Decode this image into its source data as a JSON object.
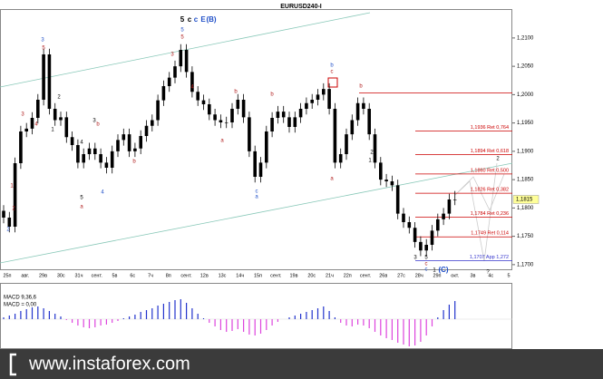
{
  "chart_data": {
    "type": "candlestick",
    "title": "EURUSD240-I",
    "ylim": [
      1.1695,
      1.2151
    ],
    "yticks": [
      {
        "value": 1.21,
        "label": "1,2100"
      },
      {
        "value": 1.205,
        "label": "1,2050"
      },
      {
        "value": 1.2,
        "label": "1,2000"
      },
      {
        "value": 1.195,
        "label": "1,1950"
      },
      {
        "value": 1.19,
        "label": "1,1900"
      },
      {
        "value": 1.185,
        "label": "1,1850"
      },
      {
        "value": 1.18,
        "label": "1,1800"
      },
      {
        "value": 1.175,
        "label": "1,1750"
      },
      {
        "value": 1.17,
        "label": "1,1700"
      }
    ],
    "xlabels": [
      "25п",
      "авг.",
      "29в",
      "30с",
      "31ч",
      "сент.",
      "5в",
      "6с",
      "7ч",
      "8п",
      "сент.",
      "12в",
      "13с",
      "14ч",
      "15п",
      "сент.",
      "19в",
      "20с",
      "21ч",
      "22п",
      "сент.",
      "26в",
      "27с",
      "28ч",
      "29п",
      "окт.",
      "3в",
      "4с",
      "5"
    ],
    "color": "#000000",
    "ohlc": [
      [
        1.1795,
        1.1805,
        1.1773,
        1.1783
      ],
      [
        1.1783,
        1.1793,
        1.1757,
        1.1767
      ],
      [
        1.1767,
        1.1889,
        1.1757,
        1.1879
      ],
      [
        1.1879,
        1.1945,
        1.1869,
        1.1935
      ],
      [
        1.1935,
        1.195,
        1.1925,
        1.194
      ],
      [
        1.194,
        1.1969,
        1.193,
        1.1959
      ],
      [
        1.1959,
        1.2001,
        1.1949,
        1.1991
      ],
      [
        1.1991,
        1.2081,
        1.1981,
        1.2071
      ],
      [
        1.2071,
        1.2081,
        1.1965,
        1.1975
      ],
      [
        1.1975,
        1.1985,
        1.1945,
        1.1955
      ],
      [
        1.1955,
        1.197,
        1.1945,
        1.196
      ],
      [
        1.196,
        1.197,
        1.1915,
        1.1925
      ],
      [
        1.1925,
        1.1935,
        1.1901,
        1.1911
      ],
      [
        1.1911,
        1.1921,
        1.187,
        1.188
      ],
      [
        1.188,
        1.1905,
        1.187,
        1.1895
      ],
      [
        1.1895,
        1.1915,
        1.1885,
        1.1905
      ],
      [
        1.1905,
        1.1915,
        1.1885,
        1.1895
      ],
      [
        1.1895,
        1.1905,
        1.187,
        1.188
      ],
      [
        1.188,
        1.189,
        1.1861,
        1.1871
      ],
      [
        1.1871,
        1.191,
        1.1861,
        1.19
      ],
      [
        1.19,
        1.193,
        1.189,
        1.192
      ],
      [
        1.192,
        1.194,
        1.191,
        1.193
      ],
      [
        1.193,
        1.194,
        1.189,
        1.19
      ],
      [
        1.19,
        1.1915,
        1.189,
        1.1905
      ],
      [
        1.1905,
        1.1937,
        1.1895,
        1.1927
      ],
      [
        1.1927,
        1.1955,
        1.1917,
        1.1945
      ],
      [
        1.1945,
        1.1965,
        1.1935,
        1.1955
      ],
      [
        1.1955,
        1.2,
        1.1945,
        1.199
      ],
      [
        1.199,
        1.2025,
        1.198,
        1.2015
      ],
      [
        1.2015,
        1.204,
        1.2005,
        1.203
      ],
      [
        1.203,
        1.206,
        1.202,
        1.205
      ],
      [
        1.205,
        1.2089,
        1.204,
        1.2079
      ],
      [
        1.2079,
        1.2089,
        1.203,
        1.204
      ],
      [
        1.204,
        1.205,
        1.1995,
        1.2005
      ],
      [
        1.2005,
        1.2015,
        1.198,
        1.199
      ],
      [
        1.199,
        1.2,
        1.1973,
        1.1983
      ],
      [
        1.1983,
        1.1993,
        1.1955,
        1.1965
      ],
      [
        1.1965,
        1.1975,
        1.1945,
        1.1955
      ],
      [
        1.1955,
        1.1965,
        1.1941,
        1.1951
      ],
      [
        1.1951,
        1.1961,
        1.1941,
        1.1951
      ],
      [
        1.1951,
        1.1985,
        1.1941,
        1.1975
      ],
      [
        1.1975,
        1.2001,
        1.1965,
        1.1991
      ],
      [
        1.1991,
        1.2001,
        1.195,
        1.196
      ],
      [
        1.196,
        1.197,
        1.189,
        1.19
      ],
      [
        1.19,
        1.191,
        1.1845,
        1.1855
      ],
      [
        1.1855,
        1.189,
        1.1845,
        1.188
      ],
      [
        1.188,
        1.1945,
        1.187,
        1.1935
      ],
      [
        1.1935,
        1.1969,
        1.1925,
        1.1959
      ],
      [
        1.1959,
        1.198,
        1.1949,
        1.197
      ],
      [
        1.197,
        1.198,
        1.195,
        1.196
      ],
      [
        1.196,
        1.197,
        1.1933,
        1.1943
      ],
      [
        1.1943,
        1.197,
        1.1933,
        1.196
      ],
      [
        1.196,
        1.1985,
        1.195,
        1.1975
      ],
      [
        1.1975,
        1.1995,
        1.1965,
        1.1985
      ],
      [
        1.1985,
        1.2001,
        1.1975,
        1.1991
      ],
      [
        1.1991,
        1.201,
        1.1981,
        1.2
      ],
      [
        1.2,
        1.202,
        1.199,
        1.201
      ],
      [
        1.201,
        1.202,
        1.1965,
        1.1975
      ],
      [
        1.1975,
        1.1985,
        1.187,
        1.188
      ],
      [
        1.188,
        1.1905,
        1.187,
        1.1895
      ],
      [
        1.1895,
        1.194,
        1.1885,
        1.193
      ],
      [
        1.193,
        1.1965,
        1.192,
        1.1955
      ],
      [
        1.1955,
        1.1995,
        1.1945,
        1.1985
      ],
      [
        1.1985,
        1.1995,
        1.1965,
        1.1975
      ],
      [
        1.1975,
        1.1985,
        1.192,
        1.193
      ],
      [
        1.193,
        1.194,
        1.187,
        1.188
      ],
      [
        1.188,
        1.189,
        1.184,
        1.185
      ],
      [
        1.185,
        1.186,
        1.1837,
        1.1847
      ],
      [
        1.1847,
        1.1857,
        1.183,
        1.184
      ],
      [
        1.184,
        1.185,
        1.178,
        1.179
      ],
      [
        1.179,
        1.18,
        1.1765,
        1.1775
      ],
      [
        1.1775,
        1.1785,
        1.1755,
        1.1765
      ],
      [
        1.1765,
        1.1775,
        1.173,
        1.174
      ],
      [
        1.174,
        1.175,
        1.1715,
        1.1725
      ],
      [
        1.1725,
        1.1745,
        1.1715,
        1.1735
      ],
      [
        1.1735,
        1.177,
        1.1725,
        1.176
      ],
      [
        1.176,
        1.179,
        1.175,
        1.178
      ],
      [
        1.178,
        1.18,
        1.177,
        1.179
      ],
      [
        1.179,
        1.1825,
        1.178,
        1.1815
      ],
      [
        1.1815,
        1.183,
        1.1805,
        1.1815
      ]
    ],
    "levels": [
      {
        "value": 1.2003,
        "color": "#cc0000"
      },
      {
        "value": 1.1936,
        "label": "1,1936 Ret 0,764",
        "color": "#cc0000"
      },
      {
        "value": 1.1894,
        "label": "1,1894 Ret 0,618",
        "color": "#cc0000"
      },
      {
        "value": 1.186,
        "label": "1,1860 Ret 0,500",
        "color": "#cc0000"
      },
      {
        "value": 1.1826,
        "label": "1,1826 Ret 0,382",
        "color": "#cc0000"
      },
      {
        "value": 1.1784,
        "label": "1,1784 Ret 0,236",
        "color": "#cc0000"
      },
      {
        "value": 1.1749,
        "label": "1,1749 Ret 0,114",
        "color": "#cc0000"
      },
      {
        "value": 1.1707,
        "label": "1,1707 App 1,272",
        "color": "#3333cc"
      }
    ],
    "price_label": {
      "value": 1.1815,
      "label": "1,1815"
    },
    "annotations": [
      {
        "text": "5",
        "color": "#000000"
      },
      {
        "text": "c",
        "color": "#000000"
      },
      {
        "text": "c",
        "color": "#1f4fc8"
      },
      {
        "text": "E",
        "color": "#1f4fc8"
      },
      {
        "text": "(B)",
        "color": "#1f4fc8"
      },
      {
        "text": "5",
        "color": "#1f4fc8"
      },
      {
        "text": "5",
        "color": "#b01c1c"
      },
      {
        "text": "3",
        "color": "#1f4fc8"
      },
      {
        "text": "5",
        "color": "#b01c1c"
      },
      {
        "text": "3",
        "color": "#b01c1c"
      },
      {
        "text": "4",
        "color": "#b01c1c"
      },
      {
        "text": "2",
        "color": "#000000"
      },
      {
        "text": "1",
        "color": "#000000"
      },
      {
        "text": "4",
        "color": "#000000"
      },
      {
        "text": "3",
        "color": "#000000"
      },
      {
        "text": "5",
        "color": "#000000"
      },
      {
        "text": "4",
        "color": "#1f4fc8"
      },
      {
        "text": "a",
        "color": "#b01c1c"
      },
      {
        "text": "b",
        "color": "#b01c1c"
      },
      {
        "text": "b",
        "color": "#b01c1c"
      },
      {
        "text": "2",
        "color": "#b01c1c"
      },
      {
        "text": "1",
        "color": "#b01c1c"
      },
      {
        "text": "2",
        "color": "#1f4fc8"
      },
      {
        "text": "3",
        "color": "#b01c1c"
      },
      {
        "text": "4",
        "color": "#b01c1c"
      },
      {
        "text": "b",
        "color": "#b01c1c"
      },
      {
        "text": "a",
        "color": "#b01c1c"
      },
      {
        "text": "b",
        "color": "#b01c1c"
      },
      {
        "text": "c",
        "color": "#1f4fc8"
      },
      {
        "text": "a",
        "color": "#1f4fc8"
      },
      {
        "text": "b",
        "color": "#1f4fc8"
      },
      {
        "text": "c",
        "color": "#b01c1c"
      },
      {
        "text": "a",
        "color": "#b01c1c"
      },
      {
        "text": "b",
        "color": "#b01c1c"
      },
      {
        "text": "2",
        "color": "#000000"
      },
      {
        "text": "1",
        "color": "#000000"
      },
      {
        "text": "3",
        "color": "#000000"
      },
      {
        "text": "5",
        "color": "#000000"
      },
      {
        "text": "c",
        "color": "#b01c1c"
      },
      {
        "text": "c",
        "color": "#1f4fc8"
      },
      {
        "text": "1",
        "color": "#000000"
      },
      {
        "text": "(C)",
        "color": "#1f4fc8"
      },
      {
        "text": "2",
        "color": "#000000"
      },
      {
        "text": "?",
        "color": "#000000"
      }
    ],
    "macd": {
      "title": "MACD 9,36,6",
      "value_label": "MACD = 0,00",
      "up_color": "#2233cc",
      "down_color": "#dd44dd",
      "values": [
        2,
        4,
        6,
        9,
        11,
        13,
        14,
        12,
        9,
        6,
        3,
        -1,
        -4,
        -7,
        -9,
        -10,
        -9,
        -7,
        -6,
        -4,
        -2,
        1,
        3,
        5,
        8,
        10,
        12,
        15,
        17,
        19,
        21,
        22,
        18,
        12,
        6,
        1,
        -4,
        -8,
        -12,
        -14,
        -13,
        -11,
        -14,
        -17,
        -18,
        -16,
        -12,
        -7,
        -3,
        0,
        2,
        4,
        6,
        8,
        10,
        12,
        14,
        9,
        2,
        -4,
        -7,
        -8,
        -6,
        -7,
        -10,
        -14,
        -18,
        -21,
        -23,
        -26,
        -28,
        -30,
        -29,
        -25,
        -18,
        -8,
        2,
        10,
        16,
        20
      ]
    },
    "brand": "www.instaforex.com"
  }
}
